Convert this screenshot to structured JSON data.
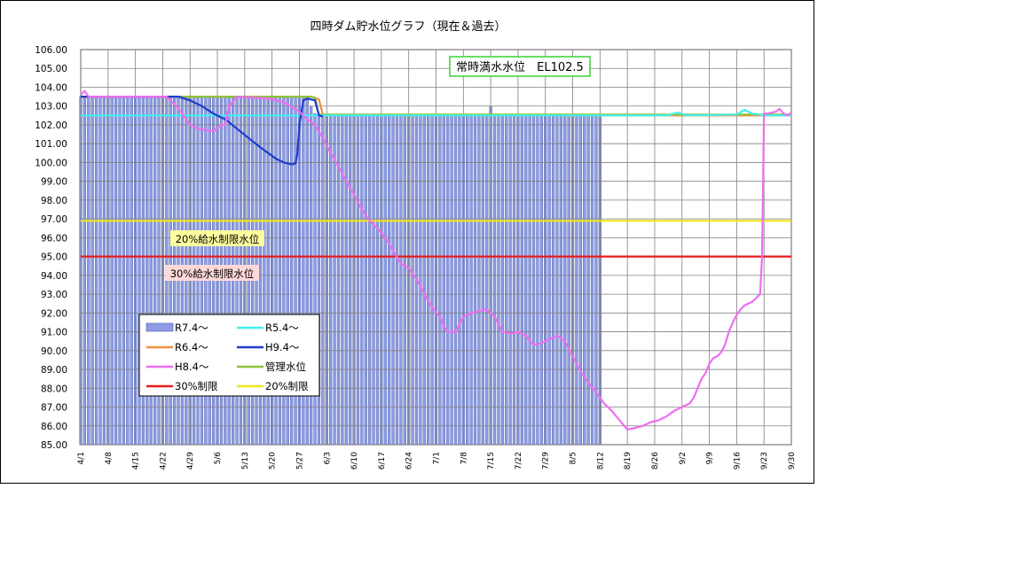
{
  "chart_data": {
    "type": "line",
    "title": "四時ダム貯水位グラフ（現在＆過去）",
    "ylim": [
      85.0,
      106.0
    ],
    "y_ticks": [
      "106.00",
      "105.00",
      "104.00",
      "103.00",
      "102.00",
      "101.00",
      "100.00",
      "99.00",
      "98.00",
      "97.00",
      "96.00",
      "95.00",
      "94.00",
      "93.00",
      "92.00",
      "91.00",
      "90.00",
      "89.00",
      "88.00",
      "87.00",
      "86.00",
      "85.00"
    ],
    "x_ticks": [
      "4/1",
      "4/8",
      "4/15",
      "4/22",
      "4/29",
      "5/6",
      "5/13",
      "5/20",
      "5/27",
      "6/3",
      "6/10",
      "6/17",
      "6/24",
      "7/1",
      "7/8",
      "7/15",
      "7/22",
      "7/29",
      "8/5",
      "8/12",
      "8/19",
      "8/26",
      "9/2",
      "9/9",
      "9/16",
      "9/23",
      "9/30"
    ],
    "x_range_days": [
      0,
      182
    ],
    "grid": true,
    "legend_placement": "lower-left",
    "annotations": {
      "full_level": "常時満水水位　EL102.5",
      "limit20": "20%給水制限水位",
      "limit30": "30%給水制限水位"
    },
    "bars": {
      "name": "R7.4～",
      "color": "#8c9ce4",
      "day_range": [
        0,
        133
      ],
      "values": [
        [
          0,
          103.5
        ],
        [
          7,
          103.5
        ],
        [
          14,
          103.5
        ],
        [
          21,
          103.5
        ],
        [
          28,
          103.5
        ],
        [
          35,
          103.5
        ],
        [
          42,
          103.5
        ],
        [
          49,
          103.5
        ],
        [
          56,
          103.5
        ],
        [
          58,
          103.4
        ],
        [
          60,
          102.6
        ],
        [
          61,
          102.55
        ],
        [
          70,
          102.5
        ],
        [
          80,
          102.5
        ],
        [
          100,
          102.5
        ],
        [
          104,
          102.5
        ],
        [
          105,
          103.0
        ],
        [
          106,
          102.5
        ],
        [
          120,
          102.5
        ],
        [
          133,
          102.5
        ]
      ]
    },
    "series": [
      {
        "name": "R5.4～",
        "color": "#3ff0ef",
        "points": [
          [
            0,
            102.5
          ],
          [
            30,
            102.5
          ],
          [
            60,
            102.5
          ],
          [
            90,
            102.5
          ],
          [
            120,
            102.5
          ],
          [
            150,
            102.5
          ],
          [
            153,
            102.65
          ],
          [
            155,
            102.5
          ],
          [
            168,
            102.55
          ],
          [
            170,
            102.8
          ],
          [
            172,
            102.6
          ],
          [
            175,
            102.5
          ],
          [
            182,
            102.5
          ]
        ]
      },
      {
        "name": "R6.4～",
        "color": "#f08f3c",
        "points": [
          [
            0,
            103.5
          ],
          [
            55,
            103.5
          ],
          [
            59,
            103.5
          ],
          [
            61,
            103.35
          ],
          [
            62,
            102.55
          ],
          [
            80,
            102.5
          ],
          [
            110,
            102.5
          ],
          [
            182,
            102.5
          ]
        ]
      },
      {
        "name": "H9.4～",
        "color": "#1f3ccc",
        "points": [
          [
            0,
            103.5
          ],
          [
            25,
            103.5
          ],
          [
            28,
            103.3
          ],
          [
            31,
            103.0
          ],
          [
            34,
            102.6
          ],
          [
            37,
            102.3
          ],
          [
            40,
            101.8
          ],
          [
            43,
            101.3
          ],
          [
            46,
            100.8
          ],
          [
            48,
            100.5
          ],
          [
            50,
            100.2
          ],
          [
            52,
            100.0
          ],
          [
            54,
            99.9
          ],
          [
            55,
            99.95
          ],
          [
            55.5,
            100.5
          ],
          [
            56,
            102.0
          ],
          [
            57,
            103.3
          ],
          [
            58,
            103.4
          ],
          [
            60,
            103.3
          ],
          [
            61,
            102.5
          ],
          [
            62,
            102.45
          ]
        ]
      },
      {
        "name": "H8.4～",
        "color": "#ee6ef0",
        "points": [
          [
            0,
            103.6
          ],
          [
            1,
            103.8
          ],
          [
            2,
            103.5
          ],
          [
            22,
            103.5
          ],
          [
            24,
            103.1
          ],
          [
            26,
            102.6
          ],
          [
            28,
            102.0
          ],
          [
            30,
            101.8
          ],
          [
            33,
            101.7
          ],
          [
            34,
            101.65
          ],
          [
            36,
            102.0
          ],
          [
            37,
            102.0
          ],
          [
            38,
            103.0
          ],
          [
            40,
            103.5
          ],
          [
            48,
            103.4
          ],
          [
            52,
            103.2
          ],
          [
            56,
            102.7
          ],
          [
            58,
            102.3
          ],
          [
            60,
            102.0
          ],
          [
            62,
            101.3
          ],
          [
            64,
            100.5
          ],
          [
            66,
            99.8
          ],
          [
            68,
            99.0
          ],
          [
            70,
            98.3
          ],
          [
            72,
            97.5
          ],
          [
            74,
            96.9
          ],
          [
            76,
            96.5
          ],
          [
            78,
            96.0
          ],
          [
            80,
            95.3
          ],
          [
            82,
            94.6
          ],
          [
            84,
            94.4
          ],
          [
            86,
            93.8
          ],
          [
            88,
            93.0
          ],
          [
            90,
            92.3
          ],
          [
            92,
            91.8
          ],
          [
            93,
            91.3
          ],
          [
            94,
            91.0
          ],
          [
            96,
            91.0
          ],
          [
            98,
            91.8
          ],
          [
            100,
            92.0
          ],
          [
            102,
            92.1
          ],
          [
            104,
            92.2
          ],
          [
            106,
            91.8
          ],
          [
            108,
            91.0
          ],
          [
            110,
            90.9
          ],
          [
            112,
            91.0
          ],
          [
            114,
            90.8
          ],
          [
            116,
            90.3
          ],
          [
            118,
            90.4
          ],
          [
            120,
            90.6
          ],
          [
            122,
            90.8
          ],
          [
            124,
            90.5
          ],
          [
            126,
            89.7
          ],
          [
            128,
            88.9
          ],
          [
            130,
            88.3
          ],
          [
            132,
            87.8
          ],
          [
            134,
            87.2
          ],
          [
            136,
            86.8
          ],
          [
            138,
            86.3
          ],
          [
            140,
            85.8
          ],
          [
            142,
            85.9
          ],
          [
            144,
            86.0
          ],
          [
            146,
            86.2
          ],
          [
            148,
            86.3
          ],
          [
            150,
            86.5
          ],
          [
            152,
            86.8
          ],
          [
            154,
            87.0
          ],
          [
            156,
            87.2
          ],
          [
            157,
            87.5
          ],
          [
            158,
            88.0
          ],
          [
            159,
            88.5
          ],
          [
            160,
            88.8
          ],
          [
            161,
            89.3
          ],
          [
            162,
            89.6
          ],
          [
            163,
            89.7
          ],
          [
            164,
            89.9
          ],
          [
            165,
            90.3
          ],
          [
            166,
            91.0
          ],
          [
            167,
            91.5
          ],
          [
            168,
            91.9
          ],
          [
            169,
            92.2
          ],
          [
            170,
            92.4
          ],
          [
            172,
            92.6
          ],
          [
            173,
            92.8
          ],
          [
            174,
            93.0
          ],
          [
            174.5,
            95.0
          ],
          [
            175,
            102.6
          ],
          [
            176,
            102.6
          ],
          [
            178,
            102.7
          ],
          [
            179,
            102.85
          ],
          [
            180,
            102.6
          ],
          [
            181,
            102.5
          ],
          [
            182,
            102.65
          ]
        ]
      },
      {
        "name": "管理水位",
        "color": "#8dc43c",
        "points": [
          [
            0,
            103.5
          ],
          [
            59,
            103.5
          ],
          [
            60,
            103.45
          ],
          [
            61,
            102.55
          ],
          [
            62,
            102.55
          ],
          [
            182,
            102.55
          ]
        ]
      },
      {
        "name": "30%制限",
        "color": "#e81c1c",
        "points": [
          [
            0,
            95.0
          ],
          [
            182,
            95.0
          ]
        ]
      },
      {
        "name": "20%制限",
        "color": "#f0e61c",
        "points": [
          [
            0,
            96.9
          ],
          [
            182,
            96.9
          ]
        ]
      }
    ],
    "legend": [
      {
        "name": "R7.4～",
        "color": "#8c9ce4",
        "kind": "bar"
      },
      {
        "name": "R5.4～",
        "color": "#3ff0ef",
        "kind": "line"
      },
      {
        "name": "R6.4～",
        "color": "#f08f3c",
        "kind": "line"
      },
      {
        "name": "H9.4～",
        "color": "#1f3ccc",
        "kind": "line"
      },
      {
        "name": "H8.4～",
        "color": "#ee6ef0",
        "kind": "line"
      },
      {
        "name": "管理水位",
        "color": "#8dc43c",
        "kind": "line"
      },
      {
        "name": "30%制限",
        "color": "#e81c1c",
        "kind": "line"
      },
      {
        "name": "20%制限",
        "color": "#f0e61c",
        "kind": "line"
      }
    ]
  }
}
